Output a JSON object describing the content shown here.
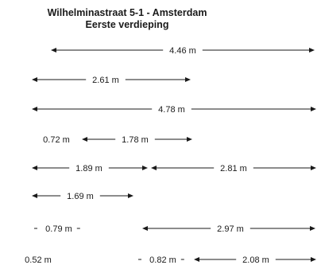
{
  "title": "Wilhelminastraat 5-1 - Amsterdam",
  "subtitle": "Eerste verdieping",
  "line_color": "#1a1a1a",
  "dimensions": [
    {
      "row": 1,
      "label": "4.46 m",
      "arrows": true
    },
    {
      "row": 2,
      "label": "2.61 m",
      "arrows": true
    },
    {
      "row": 3,
      "label": "4.78 m",
      "arrows": true
    },
    {
      "row": 4,
      "label": "0.72 m",
      "arrows": false
    },
    {
      "row": 4,
      "label": "1.78 m",
      "arrows": true
    },
    {
      "row": 5,
      "label": "1.89 m",
      "arrows": true
    },
    {
      "row": 5,
      "label": "2.81 m",
      "arrows": true
    },
    {
      "row": 6,
      "label": "1.69 m",
      "arrows": true
    },
    {
      "row": 7,
      "label": "0.79 m",
      "arrows": false
    },
    {
      "row": 7,
      "label": "2.97 m",
      "arrows": true
    },
    {
      "row": 8,
      "label": "0.52 m",
      "arrows": false
    },
    {
      "row": 8,
      "label": "0.82 m",
      "arrows": false
    },
    {
      "row": 8,
      "label": "2.08 m",
      "arrows": true
    }
  ]
}
